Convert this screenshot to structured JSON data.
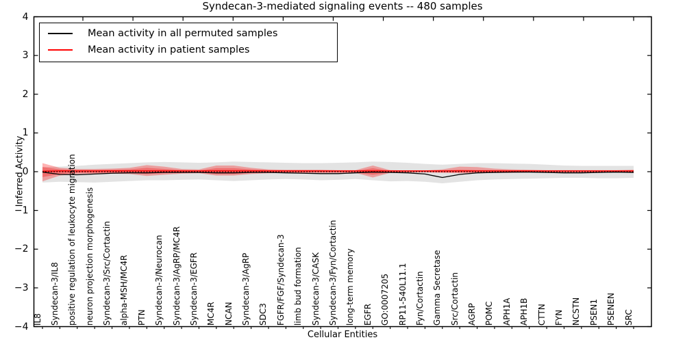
{
  "chart": {
    "title": "Syndecan-3-mediated signaling events -- 480 samples",
    "xlabel": "Cellular Entities",
    "ylabel": "Inferred Activity",
    "legend": {
      "items": [
        {
          "name": "permuted",
          "label": "Mean activity in all permuted samples",
          "color": "#000000"
        },
        {
          "name": "patient",
          "label": "Mean activity in patient samples",
          "color": "#ff0000"
        }
      ]
    }
  },
  "chart_data": {
    "type": "line",
    "title": "Syndecan-3-mediated signaling events -- 480 samples",
    "xlabel": "Cellular Entities",
    "ylabel": "Inferred Activity",
    "ylim": [
      -4,
      4
    ],
    "yticks": {
      "values": [
        4,
        3,
        2,
        1,
        0,
        -1,
        -2,
        -3,
        -4
      ],
      "labels": [
        "4",
        "3",
        "2",
        "1",
        "0",
        "−1",
        "−2",
        "−3",
        "−4"
      ]
    },
    "grid": false,
    "legend_position": "upper-left",
    "categories": [
      "IL8",
      "Syndecan-3/IL8",
      "positive regulation of leukocyte migration",
      "neuron projection morphogenesis",
      "Syndecan-3/Src/Cortactin",
      "alpha-MSH/MC4R",
      "PTN",
      "Syndecan-3/Neurocan",
      "Syndecan-3/AgRP/MC4R",
      "Syndecan-3/EGFR",
      "MC4R",
      "NCAN",
      "Syndecan-3/AgRP",
      "SDC3",
      "FGFR/FGF/Syndecan-3",
      "limb bud formation",
      "Syndecan-3/CASK",
      "Syndecan-3/Fyn/Cortactin",
      "long-term memory",
      "EGFR",
      "GO:0007205",
      "RP11-540L11.1",
      "Fyn/Cortactin",
      "Gamma Secretase",
      "Src/Cortactin",
      "AGRP",
      "POMC",
      "APH1A",
      "APH1B",
      "CTTN",
      "FYN",
      "NCSTN",
      "PSEN1",
      "PSENEN",
      "SRC"
    ],
    "series": [
      {
        "name": "Mean activity in all permuted samples",
        "color": "#000000",
        "width": 1.3,
        "values": [
          -0.01,
          -0.07,
          -0.08,
          -0.06,
          -0.04,
          -0.03,
          -0.03,
          -0.02,
          -0.02,
          -0.02,
          -0.03,
          -0.03,
          -0.02,
          -0.02,
          -0.03,
          -0.04,
          -0.05,
          -0.05,
          -0.03,
          -0.01,
          -0.02,
          -0.03,
          -0.06,
          -0.15,
          -0.07,
          -0.03,
          -0.02,
          -0.01,
          -0.01,
          -0.02,
          -0.03,
          -0.03,
          -0.02,
          -0.01,
          -0.02
        ]
      },
      {
        "name": "Mean activity in patient samples",
        "color": "#ff0000",
        "width": 1.6,
        "values": [
          0.01,
          0.02,
          0.02,
          0.02,
          0.02,
          0.02,
          0.02,
          0.02,
          0.02,
          0.02,
          0.02,
          0.02,
          0.02,
          0.02,
          0.02,
          0.02,
          0.02,
          0.02,
          0.02,
          0.02,
          0.02,
          0.02,
          0.02,
          0.02,
          0.02,
          0.02,
          0.02,
          0.02,
          0.02,
          0.02,
          0.02,
          0.02,
          0.02,
          0.02,
          0.02
        ]
      }
    ],
    "bands": [
      {
        "name": "permuted-activity-range",
        "color": "#999999",
        "opacity": 0.28,
        "upper": [
          0.12,
          0.13,
          0.15,
          0.18,
          0.2,
          0.22,
          0.24,
          0.25,
          0.24,
          0.23,
          0.24,
          0.26,
          0.25,
          0.24,
          0.23,
          0.22,
          0.22,
          0.23,
          0.24,
          0.26,
          0.25,
          0.23,
          0.2,
          0.18,
          0.2,
          0.22,
          0.22,
          0.21,
          0.2,
          0.18,
          0.16,
          0.15,
          0.15,
          0.15,
          0.15
        ],
        "lower": [
          -0.28,
          -0.26,
          -0.27,
          -0.28,
          -0.26,
          -0.24,
          -0.22,
          -0.22,
          -0.21,
          -0.2,
          -0.22,
          -0.24,
          -0.22,
          -0.2,
          -0.19,
          -0.2,
          -0.22,
          -0.21,
          -0.19,
          -0.22,
          -0.25,
          -0.24,
          -0.26,
          -0.3,
          -0.26,
          -0.22,
          -0.2,
          -0.19,
          -0.18,
          -0.17,
          -0.16,
          -0.16,
          -0.17,
          -0.17,
          -0.16
        ]
      },
      {
        "name": "patient-activity-range-outer",
        "color": "#ff0000",
        "opacity": 0.3,
        "upper": [
          0.22,
          0.1,
          0.07,
          0.07,
          0.08,
          0.1,
          0.17,
          0.13,
          0.07,
          0.06,
          0.16,
          0.16,
          0.1,
          0.06,
          0.05,
          0.05,
          0.05,
          0.04,
          0.04,
          0.16,
          0.04,
          0.03,
          0.03,
          0.06,
          0.13,
          0.12,
          0.08,
          0.06,
          0.05,
          0.04,
          0.04,
          0.04,
          0.04,
          0.04,
          0.05
        ],
        "lower": [
          -0.25,
          -0.1,
          -0.06,
          -0.05,
          -0.05,
          -0.06,
          -0.11,
          -0.08,
          -0.05,
          -0.04,
          -0.1,
          -0.1,
          -0.06,
          -0.04,
          -0.03,
          -0.03,
          -0.03,
          -0.03,
          -0.03,
          -0.15,
          -0.03,
          -0.02,
          -0.02,
          -0.03,
          -0.04,
          -0.04,
          -0.03,
          -0.03,
          -0.02,
          -0.02,
          -0.02,
          -0.02,
          -0.02,
          -0.02,
          -0.03
        ]
      },
      {
        "name": "patient-activity-range-inner",
        "color": "#ff0000",
        "opacity": 0.3,
        "upper": [
          0.12,
          0.06,
          0.04,
          0.04,
          0.05,
          0.06,
          0.1,
          0.07,
          0.04,
          0.03,
          0.09,
          0.09,
          0.06,
          0.04,
          0.03,
          0.03,
          0.03,
          0.02,
          0.02,
          0.09,
          0.02,
          0.02,
          0.02,
          0.03,
          0.05,
          0.04,
          0.04,
          0.03,
          0.03,
          0.02,
          0.02,
          0.02,
          0.02,
          0.02,
          0.03
        ],
        "lower": [
          -0.14,
          -0.06,
          -0.03,
          -0.03,
          -0.03,
          -0.03,
          -0.06,
          -0.04,
          -0.03,
          -0.02,
          -0.06,
          -0.06,
          -0.03,
          -0.02,
          -0.02,
          -0.02,
          -0.02,
          -0.02,
          -0.02,
          -0.08,
          -0.02,
          -0.01,
          -0.01,
          -0.02,
          -0.02,
          -0.02,
          -0.02,
          -0.02,
          -0.01,
          -0.01,
          -0.01,
          -0.01,
          -0.01,
          -0.01,
          -0.02
        ]
      }
    ],
    "zero_line": {
      "value": 0,
      "style": "dotted",
      "color": "#000000"
    }
  }
}
